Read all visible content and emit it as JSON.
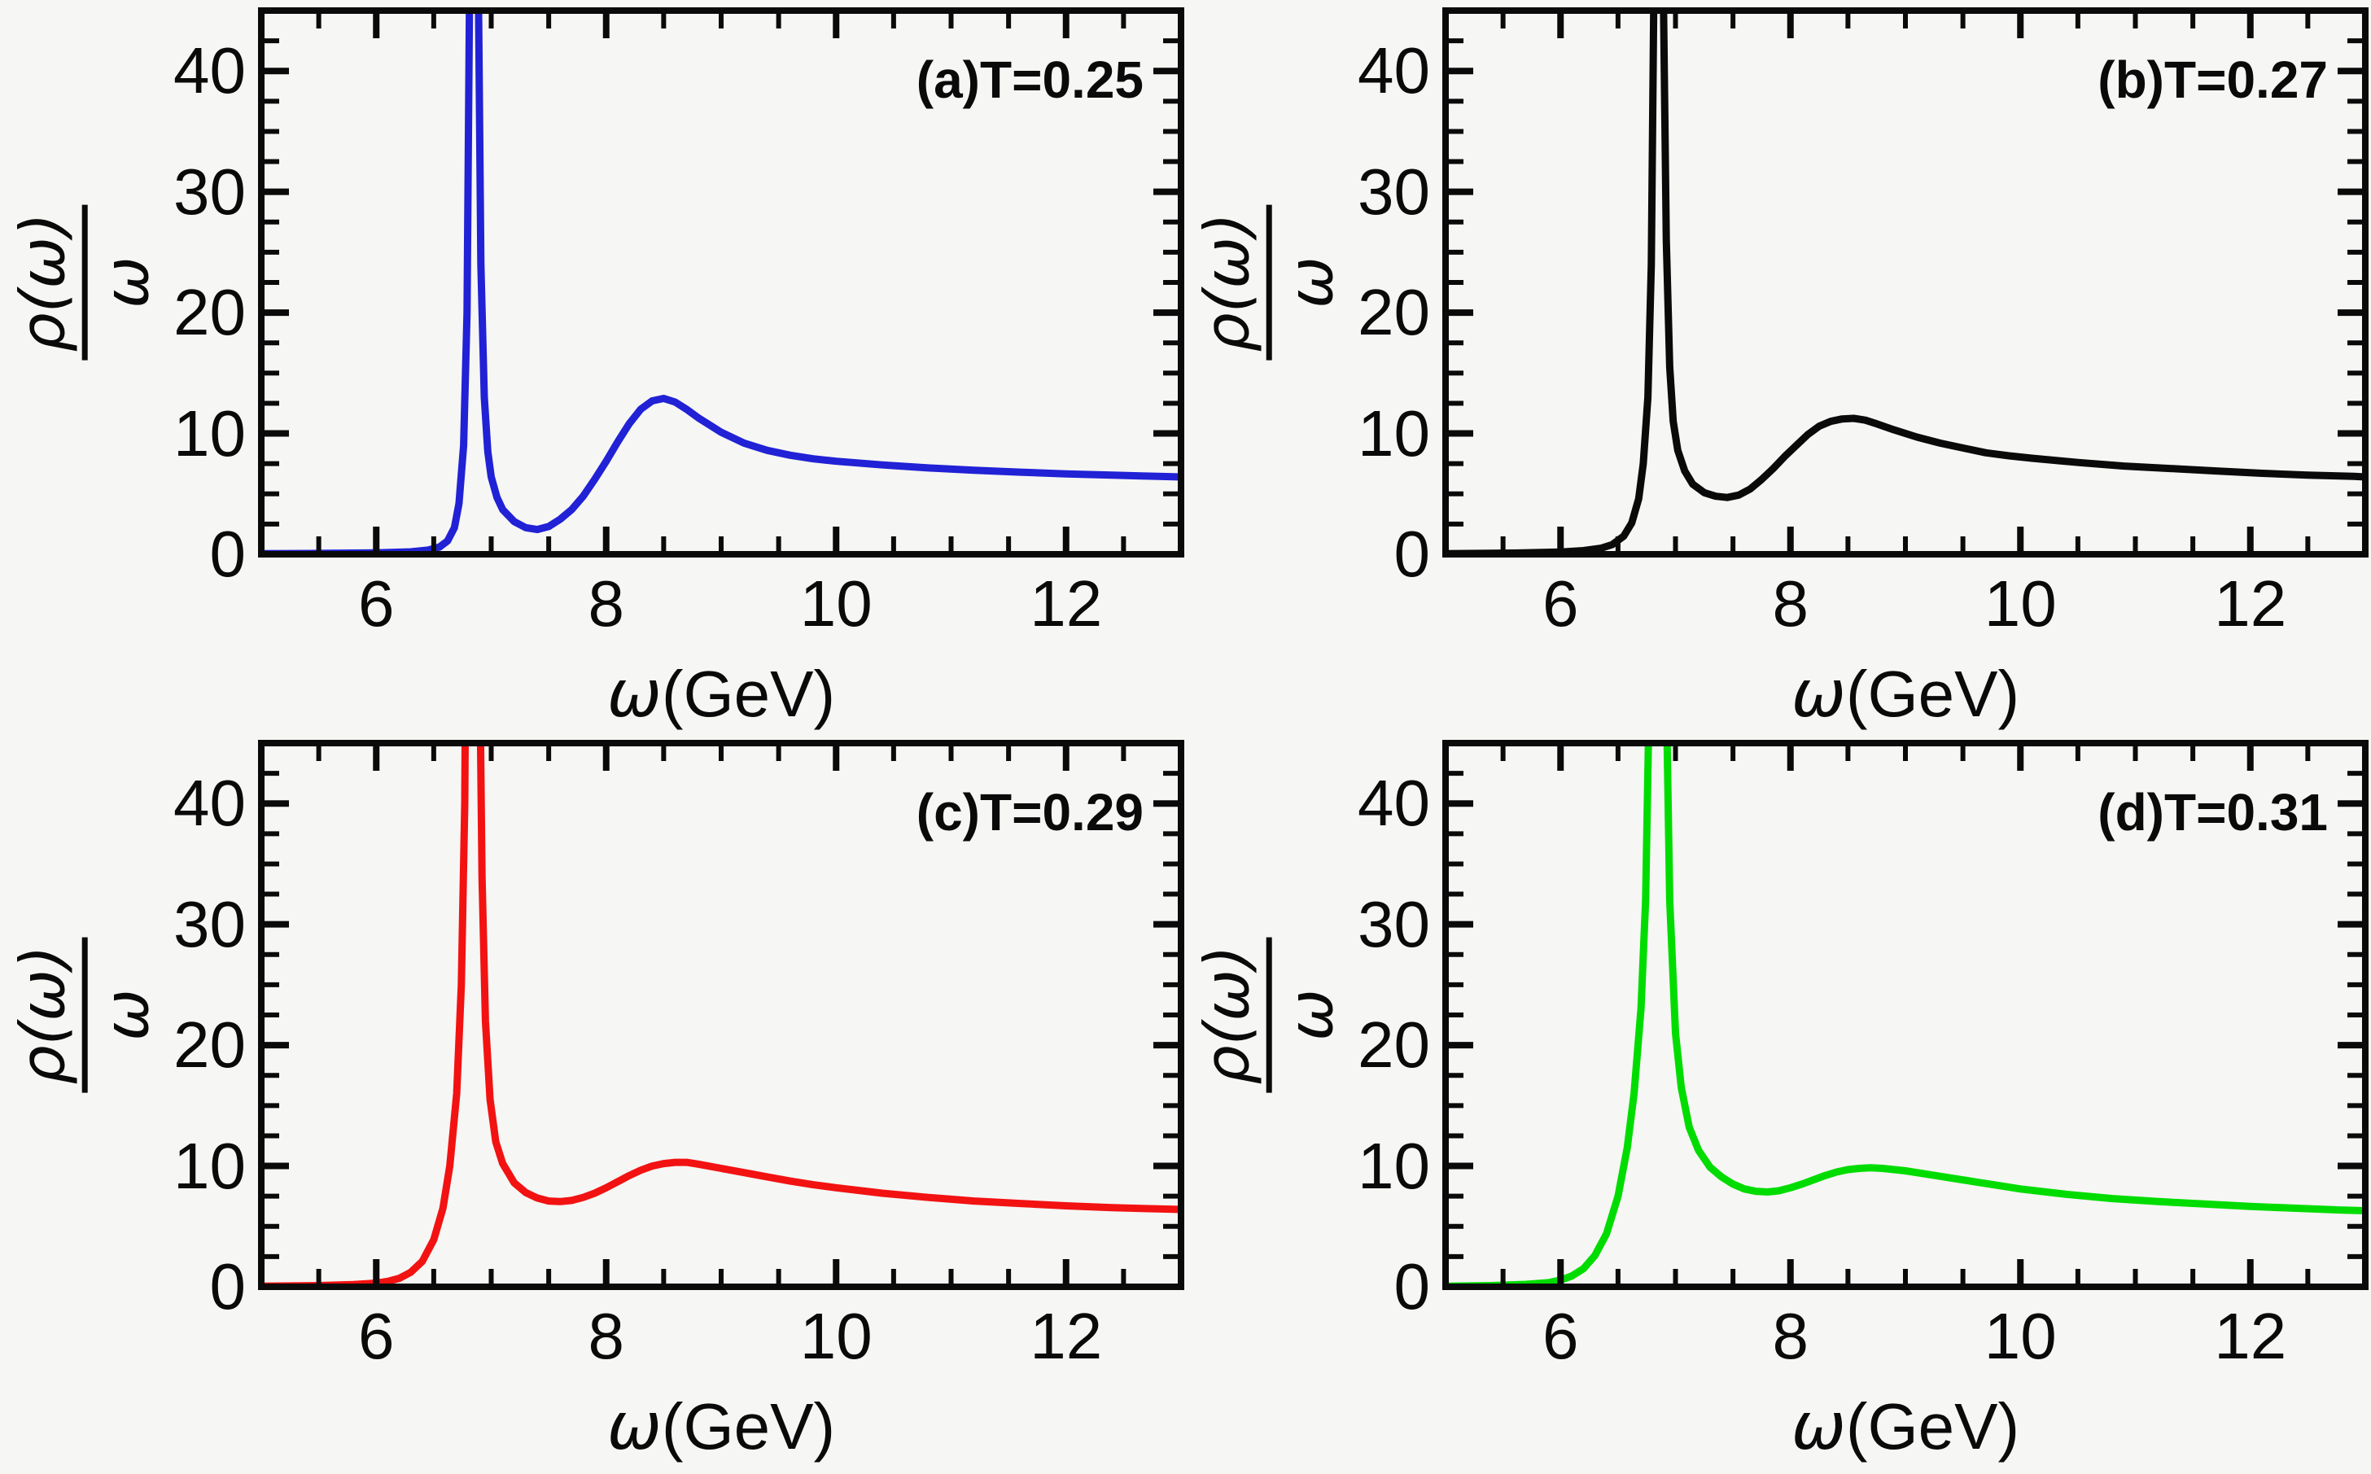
{
  "figure": {
    "background": "#f6f6f4",
    "frame_color": "#0a0a0a",
    "xlabel_omega": "ω",
    "xlabel_units": "(GeV)",
    "ylabel_numerator": "ρ(ω)",
    "ylabel_denominator": "ω"
  },
  "chart_data": [
    {
      "type": "line",
      "panel": "a",
      "title": "(a)T=0.25",
      "color": "#2121d6",
      "xlabel": "ω(GeV)",
      "ylabel": "ρ(ω)/ω",
      "xlim": [
        5,
        13
      ],
      "ylim": [
        0,
        45
      ],
      "xticks": [
        6,
        8,
        10,
        12
      ],
      "yticks": [
        0,
        10,
        20,
        30,
        40
      ],
      "x_minor_step": 0.5,
      "y_minor_step": 2.5,
      "features": {
        "sharp_peak_at": 6.85,
        "dip": [
          7.4,
          2.05
        ],
        "broad_peak": [
          8.5,
          12.9
        ],
        "tail_end": [
          13,
          6.4
        ]
      },
      "points": [
        [
          5,
          0.05
        ],
        [
          5.6,
          0.08
        ],
        [
          6.0,
          0.12
        ],
        [
          6.3,
          0.2
        ],
        [
          6.45,
          0.35
        ],
        [
          6.55,
          0.6
        ],
        [
          6.62,
          1.1
        ],
        [
          6.68,
          2.2
        ],
        [
          6.72,
          4.2
        ],
        [
          6.76,
          9
        ],
        [
          6.79,
          20
        ],
        [
          6.81,
          45
        ],
        [
          6.83,
          110
        ],
        [
          6.85,
          200
        ],
        [
          6.87,
          110
        ],
        [
          6.89,
          45
        ],
        [
          6.91,
          24
        ],
        [
          6.94,
          13
        ],
        [
          6.97,
          8.5
        ],
        [
          7.0,
          6.4
        ],
        [
          7.05,
          4.7
        ],
        [
          7.1,
          3.7
        ],
        [
          7.2,
          2.7
        ],
        [
          7.3,
          2.2
        ],
        [
          7.4,
          2.05
        ],
        [
          7.5,
          2.3
        ],
        [
          7.6,
          2.9
        ],
        [
          7.7,
          3.7
        ],
        [
          7.8,
          4.8
        ],
        [
          7.9,
          6.2
        ],
        [
          8.0,
          7.7
        ],
        [
          8.1,
          9.3
        ],
        [
          8.2,
          10.8
        ],
        [
          8.3,
          12.0
        ],
        [
          8.4,
          12.7
        ],
        [
          8.5,
          12.9
        ],
        [
          8.6,
          12.6
        ],
        [
          8.7,
          12.0
        ],
        [
          8.8,
          11.3
        ],
        [
          8.9,
          10.7
        ],
        [
          9.0,
          10.1
        ],
        [
          9.2,
          9.2
        ],
        [
          9.4,
          8.6
        ],
        [
          9.6,
          8.2
        ],
        [
          9.8,
          7.9
        ],
        [
          10.0,
          7.7
        ],
        [
          10.4,
          7.4
        ],
        [
          10.8,
          7.15
        ],
        [
          11.2,
          6.95
        ],
        [
          11.6,
          6.8
        ],
        [
          12.0,
          6.65
        ],
        [
          12.4,
          6.55
        ],
        [
          12.8,
          6.45
        ],
        [
          13.0,
          6.4
        ]
      ]
    },
    {
      "type": "line",
      "panel": "b",
      "title": "(b)T=0.27",
      "color": "#0a0a0a",
      "xlabel": "ω(GeV)",
      "ylabel": "ρ(ω)/ω",
      "xlim": [
        5,
        13
      ],
      "ylim": [
        0,
        45
      ],
      "xticks": [
        6,
        8,
        10,
        12
      ],
      "yticks": [
        0,
        10,
        20,
        30,
        40
      ],
      "x_minor_step": 0.5,
      "y_minor_step": 2.5,
      "features": {
        "sharp_peak_at": 6.85,
        "dip": [
          7.45,
          4.7
        ],
        "broad_peak": [
          8.55,
          11.25
        ],
        "tail_end": [
          13,
          6.4
        ]
      },
      "points": [
        [
          5,
          0.05
        ],
        [
          5.6,
          0.1
        ],
        [
          6.0,
          0.18
        ],
        [
          6.2,
          0.3
        ],
        [
          6.35,
          0.5
        ],
        [
          6.45,
          0.8
        ],
        [
          6.55,
          1.5
        ],
        [
          6.62,
          2.6
        ],
        [
          6.68,
          4.6
        ],
        [
          6.72,
          7.5
        ],
        [
          6.76,
          13
        ],
        [
          6.79,
          24
        ],
        [
          6.81,
          45
        ],
        [
          6.83,
          110
        ],
        [
          6.85,
          200
        ],
        [
          6.87,
          110
        ],
        [
          6.89,
          50
        ],
        [
          6.92,
          26
        ],
        [
          6.95,
          15.5
        ],
        [
          6.98,
          11
        ],
        [
          7.02,
          8.6
        ],
        [
          7.08,
          6.9
        ],
        [
          7.15,
          5.8
        ],
        [
          7.25,
          5.1
        ],
        [
          7.35,
          4.8
        ],
        [
          7.45,
          4.7
        ],
        [
          7.55,
          4.9
        ],
        [
          7.65,
          5.4
        ],
        [
          7.75,
          6.2
        ],
        [
          7.85,
          7.1
        ],
        [
          7.95,
          8.1
        ],
        [
          8.05,
          9.0
        ],
        [
          8.15,
          9.9
        ],
        [
          8.25,
          10.6
        ],
        [
          8.35,
          11.0
        ],
        [
          8.45,
          11.2
        ],
        [
          8.55,
          11.25
        ],
        [
          8.65,
          11.1
        ],
        [
          8.75,
          10.8
        ],
        [
          8.9,
          10.3
        ],
        [
          9.1,
          9.7
        ],
        [
          9.3,
          9.2
        ],
        [
          9.5,
          8.8
        ],
        [
          9.7,
          8.4
        ],
        [
          9.9,
          8.15
        ],
        [
          10.1,
          7.95
        ],
        [
          10.5,
          7.6
        ],
        [
          10.9,
          7.3
        ],
        [
          11.3,
          7.1
        ],
        [
          11.7,
          6.9
        ],
        [
          12.1,
          6.7
        ],
        [
          12.5,
          6.55
        ],
        [
          12.9,
          6.45
        ],
        [
          13.0,
          6.4
        ]
      ]
    },
    {
      "type": "line",
      "panel": "c",
      "title": "(c)T=0.29",
      "color": "#f21212",
      "xlabel": "ω(GeV)",
      "ylabel": "ρ(ω)/ω",
      "xlim": [
        5,
        13
      ],
      "ylim": [
        0,
        45
      ],
      "xticks": [
        6,
        8,
        10,
        12
      ],
      "yticks": [
        0,
        10,
        20,
        30,
        40
      ],
      "x_minor_step": 0.5,
      "y_minor_step": 2.5,
      "features": {
        "sharp_peak_at": 6.82,
        "dip": [
          7.55,
          7.05
        ],
        "broad_peak": [
          8.65,
          10.3
        ],
        "tail_end": [
          13,
          6.4
        ]
      },
      "points": [
        [
          5,
          0.05
        ],
        [
          5.5,
          0.1
        ],
        [
          5.8,
          0.18
        ],
        [
          6.0,
          0.3
        ],
        [
          6.1,
          0.45
        ],
        [
          6.2,
          0.7
        ],
        [
          6.3,
          1.2
        ],
        [
          6.4,
          2.1
        ],
        [
          6.5,
          3.9
        ],
        [
          6.58,
          6.5
        ],
        [
          6.64,
          10
        ],
        [
          6.7,
          16
        ],
        [
          6.74,
          25
        ],
        [
          6.77,
          40
        ],
        [
          6.79,
          70
        ],
        [
          6.82,
          200
        ],
        [
          6.86,
          120
        ],
        [
          6.89,
          60
        ],
        [
          6.92,
          34
        ],
        [
          6.95,
          22
        ],
        [
          6.99,
          15.5
        ],
        [
          7.04,
          12
        ],
        [
          7.1,
          10.2
        ],
        [
          7.2,
          8.6
        ],
        [
          7.3,
          7.8
        ],
        [
          7.4,
          7.35
        ],
        [
          7.5,
          7.1
        ],
        [
          7.6,
          7.05
        ],
        [
          7.7,
          7.15
        ],
        [
          7.8,
          7.4
        ],
        [
          7.9,
          7.75
        ],
        [
          8.0,
          8.2
        ],
        [
          8.1,
          8.7
        ],
        [
          8.2,
          9.2
        ],
        [
          8.3,
          9.65
        ],
        [
          8.4,
          10.0
        ],
        [
          8.5,
          10.2
        ],
        [
          8.6,
          10.3
        ],
        [
          8.7,
          10.3
        ],
        [
          8.8,
          10.15
        ],
        [
          9.0,
          9.8
        ],
        [
          9.2,
          9.45
        ],
        [
          9.4,
          9.1
        ],
        [
          9.6,
          8.75
        ],
        [
          9.8,
          8.45
        ],
        [
          10.0,
          8.2
        ],
        [
          10.4,
          7.75
        ],
        [
          10.8,
          7.4
        ],
        [
          11.2,
          7.1
        ],
        [
          11.6,
          6.9
        ],
        [
          12.0,
          6.7
        ],
        [
          12.4,
          6.55
        ],
        [
          12.8,
          6.45
        ],
        [
          13.0,
          6.4
        ]
      ]
    },
    {
      "type": "line",
      "panel": "d",
      "title": "(d)T=0.31",
      "color": "#00dc00",
      "xlabel": "ω(GeV)",
      "ylabel": "ρ(ω)/ω",
      "xlim": [
        5,
        13
      ],
      "ylim": [
        0,
        45
      ],
      "xticks": [
        6,
        8,
        10,
        12
      ],
      "yticks": [
        0,
        10,
        20,
        30,
        40
      ],
      "x_minor_step": 0.5,
      "y_minor_step": 2.5,
      "features": {
        "sharp_peak_at": 6.83,
        "dip": [
          7.75,
          7.85
        ],
        "broad_peak": [
          8.7,
          9.85
        ],
        "tail_end": [
          13,
          6.3
        ]
      },
      "points": [
        [
          5,
          0.05
        ],
        [
          5.4,
          0.1
        ],
        [
          5.7,
          0.2
        ],
        [
          5.9,
          0.35
        ],
        [
          6.0,
          0.55
        ],
        [
          6.1,
          0.9
        ],
        [
          6.2,
          1.5
        ],
        [
          6.3,
          2.6
        ],
        [
          6.4,
          4.4
        ],
        [
          6.5,
          7.5
        ],
        [
          6.58,
          11.5
        ],
        [
          6.64,
          16
        ],
        [
          6.7,
          23
        ],
        [
          6.74,
          32
        ],
        [
          6.77,
          48
        ],
        [
          6.8,
          90
        ],
        [
          6.83,
          200
        ],
        [
          6.87,
          110
        ],
        [
          6.91,
          55
        ],
        [
          6.95,
          32
        ],
        [
          7.0,
          21
        ],
        [
          7.05,
          16.5
        ],
        [
          7.12,
          13.2
        ],
        [
          7.2,
          11.3
        ],
        [
          7.3,
          9.9
        ],
        [
          7.4,
          9.1
        ],
        [
          7.5,
          8.5
        ],
        [
          7.6,
          8.1
        ],
        [
          7.7,
          7.9
        ],
        [
          7.8,
          7.85
        ],
        [
          7.9,
          7.95
        ],
        [
          8.0,
          8.2
        ],
        [
          8.1,
          8.5
        ],
        [
          8.2,
          8.85
        ],
        [
          8.3,
          9.2
        ],
        [
          8.4,
          9.5
        ],
        [
          8.5,
          9.7
        ],
        [
          8.6,
          9.8
        ],
        [
          8.7,
          9.85
        ],
        [
          8.8,
          9.8
        ],
        [
          9.0,
          9.6
        ],
        [
          9.2,
          9.3
        ],
        [
          9.4,
          9.0
        ],
        [
          9.6,
          8.7
        ],
        [
          9.8,
          8.4
        ],
        [
          10.0,
          8.1
        ],
        [
          10.4,
          7.65
        ],
        [
          10.8,
          7.3
        ],
        [
          11.2,
          7.05
        ],
        [
          11.6,
          6.85
        ],
        [
          12.0,
          6.65
        ],
        [
          12.4,
          6.5
        ],
        [
          12.8,
          6.35
        ],
        [
          13.0,
          6.3
        ]
      ]
    }
  ]
}
